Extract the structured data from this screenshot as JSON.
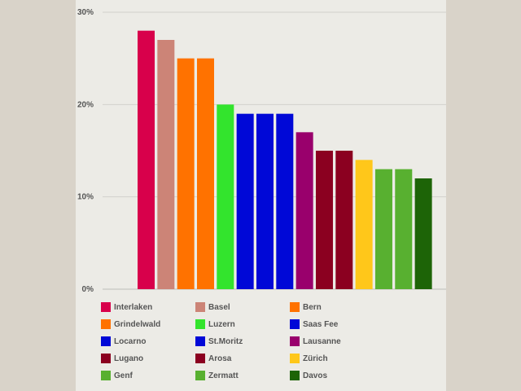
{
  "chart_data": {
    "type": "bar",
    "categories": [
      "Interlaken",
      "Basel",
      "Grindelwald",
      "Bern",
      "Luzern",
      "Saas Fee",
      "Locarno",
      "St.Moritz",
      "Lausanne",
      "Lugano",
      "Arosa",
      "Zürich",
      "Genf",
      "Zermatt",
      "Davos"
    ],
    "values": [
      28,
      27,
      25,
      25,
      20,
      19,
      19,
      19,
      17,
      15,
      15,
      14,
      13,
      13,
      12
    ],
    "colors": [
      "#d8004b",
      "#cc8477",
      "#ff7200",
      "#ff7200",
      "#33e42d",
      "#0008d7",
      "#0008d7",
      "#0008d7",
      "#99006c",
      "#8b0020",
      "#8b0020",
      "#ffc71a",
      "#58b030",
      "#58b030",
      "#1d6407"
    ],
    "yticks": [
      "0%",
      "10%",
      "20%",
      "30%"
    ],
    "ylim": [
      0,
      30
    ],
    "grid": true,
    "legend_position": "bottom",
    "legend": [
      {
        "label": "Interlaken",
        "color": "#d8004b"
      },
      {
        "label": "Basel",
        "color": "#cc8477"
      },
      {
        "label": "Bern",
        "color": "#ff7200"
      },
      {
        "label": "Grindelwald",
        "color": "#ff7200"
      },
      {
        "label": "Luzern",
        "color": "#33e42d"
      },
      {
        "label": "Saas Fee",
        "color": "#0008d7"
      },
      {
        "label": "Locarno",
        "color": "#0008d7"
      },
      {
        "label": "St.Moritz",
        "color": "#0008d7"
      },
      {
        "label": "Lausanne",
        "color": "#99006c"
      },
      {
        "label": "Lugano",
        "color": "#8b0020"
      },
      {
        "label": "Arosa",
        "color": "#8b0020"
      },
      {
        "label": "Zürich",
        "color": "#ffc71a"
      },
      {
        "label": "Genf",
        "color": "#58b030"
      },
      {
        "label": "Zermatt",
        "color": "#58b030"
      },
      {
        "label": "Davos",
        "color": "#1d6407"
      }
    ]
  }
}
